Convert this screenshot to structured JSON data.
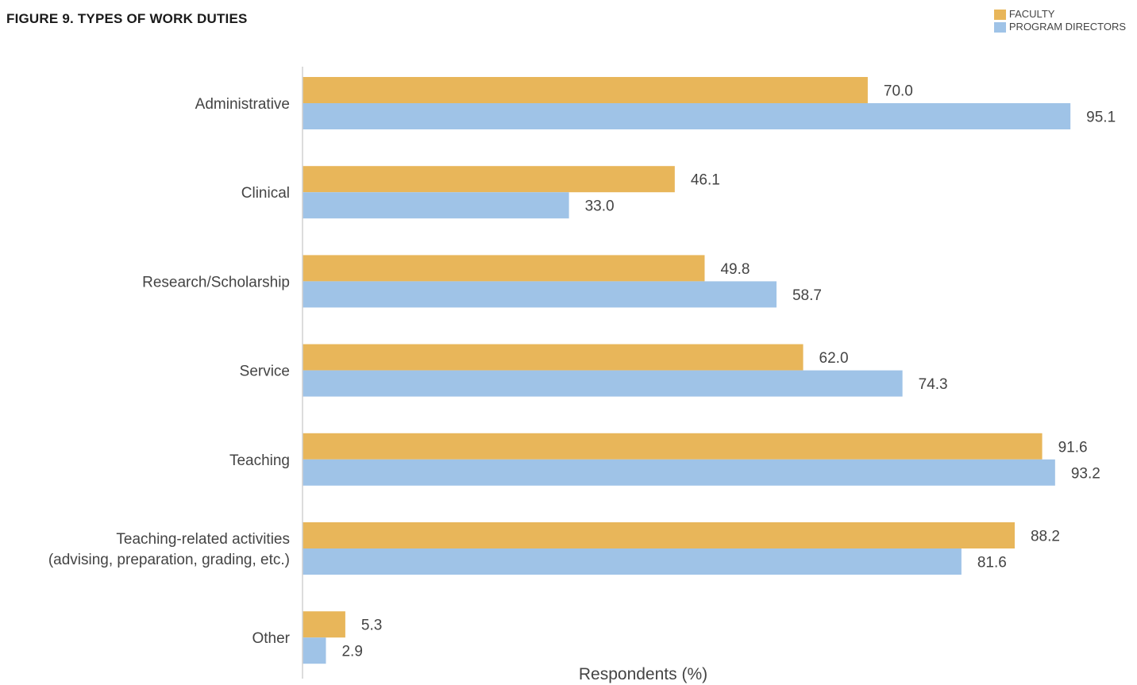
{
  "chart_data": {
    "type": "bar",
    "orientation": "horizontal",
    "title": "FIGURE 9. TYPES OF WORK DUTIES",
    "xlabel": "Respondents (%)",
    "ylabel": "",
    "categories": [
      [
        "Administrative"
      ],
      [
        "Clinical"
      ],
      [
        "Research/Scholarship"
      ],
      [
        "Service"
      ],
      [
        "Teaching"
      ],
      [
        "Teaching-related activities",
        "(advising, preparation, grading, etc.)"
      ],
      [
        "Other"
      ]
    ],
    "series": [
      {
        "name": "FACULTY",
        "color": "#E8B65A",
        "values": [
          70.0,
          46.1,
          49.8,
          62.0,
          91.6,
          88.2,
          5.3
        ]
      },
      {
        "name": "PROGRAM DIRECTORS",
        "color": "#9FC3E7",
        "values": [
          95.1,
          33.0,
          58.7,
          74.3,
          93.2,
          81.6,
          2.9
        ]
      }
    ],
    "xlim": [
      0,
      100
    ],
    "grid": false,
    "legend_position": "top-right",
    "axis_color": "#d0d0d0"
  }
}
